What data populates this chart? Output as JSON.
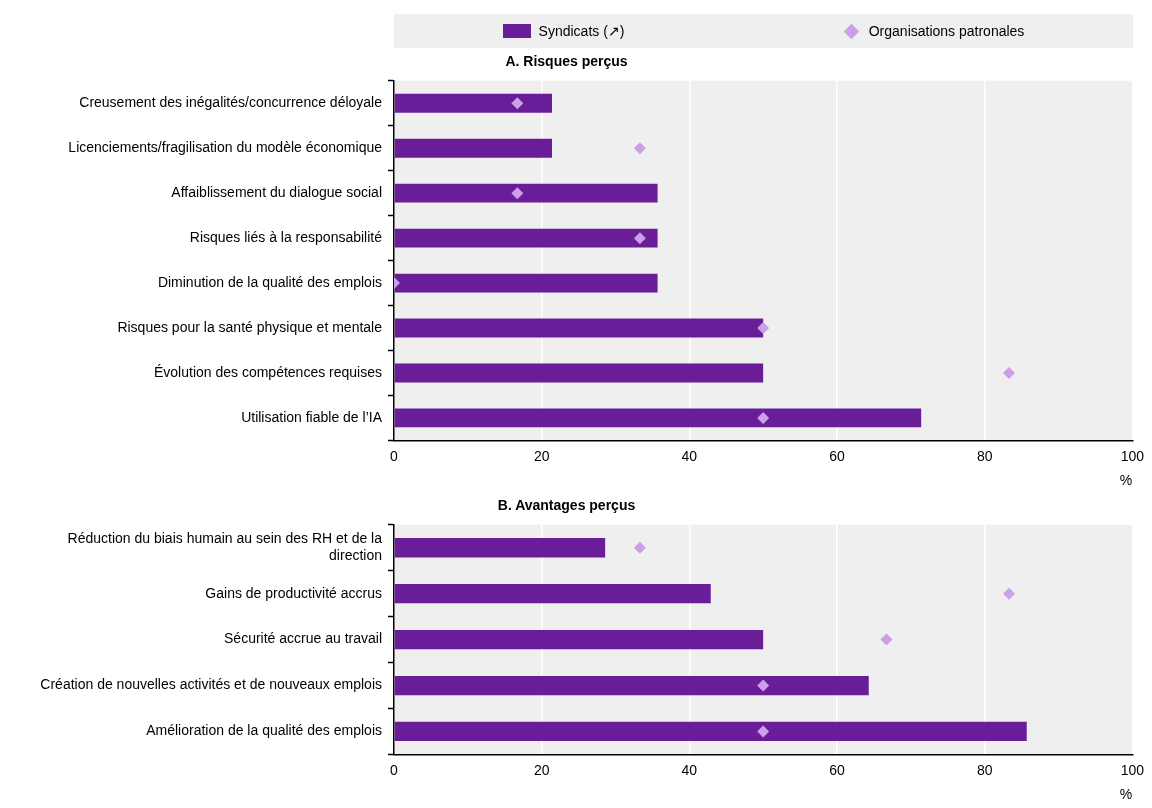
{
  "chart_data": [
    {
      "type": "bar",
      "orientation": "horizontal",
      "title": "A. Risques perçus",
      "xlabel": "%",
      "legend": "top",
      "grid": "x",
      "categories": [
        "Creusement des inégalités/concurrence déloyale",
        "Licenciements/fragilisation du modèle économique",
        "Affaiblissement du dialogue social",
        "Risques liés à la responsabilité",
        "Diminution de la qualité des emplois",
        "Risques pour la santé physique et mentale",
        "Évolution des compétences requises",
        "Utilisation fiable de l’IA"
      ],
      "xlim": [
        0,
        100
      ],
      "xticks": [
        0,
        20,
        40,
        60,
        80,
        100
      ],
      "series": [
        {
          "name": "Syndicats (↗)",
          "color": "#6a1d99",
          "values": [
            21.4,
            21.4,
            35.7,
            35.7,
            35.7,
            50,
            50,
            71.4
          ]
        },
        {
          "name": "Organisations patronales",
          "type": "scatter",
          "marker": "diamond",
          "color": "#cc9fe8",
          "values": [
            16.7,
            33.3,
            16.7,
            33.3,
            0,
            50,
            83.3,
            50
          ]
        }
      ]
    },
    {
      "type": "bar",
      "orientation": "horizontal",
      "title": "B. Avantages perçus",
      "xlabel": "%",
      "grid": "x",
      "categories": [
        "Réduction du biais humain au sein des RH et de la direction",
        "Gains de productivité accrus",
        "Sécurité accrue au travail",
        "Création de nouvelles activités et de nouveaux emplois",
        "Amélioration de la qualité des emplois"
      ],
      "xlim": [
        0,
        100
      ],
      "xticks": [
        0,
        20,
        40,
        60,
        80,
        100
      ],
      "series": [
        {
          "color": "#6a1d99",
          "values": [
            28.6,
            42.9,
            50,
            64.3,
            85.7
          ]
        },
        {
          "type": "scatter",
          "marker": "diamond",
          "color": "#cc9fe8",
          "values": [
            33.3,
            83.3,
            66.7,
            50,
            50
          ]
        }
      ]
    }
  ]
}
